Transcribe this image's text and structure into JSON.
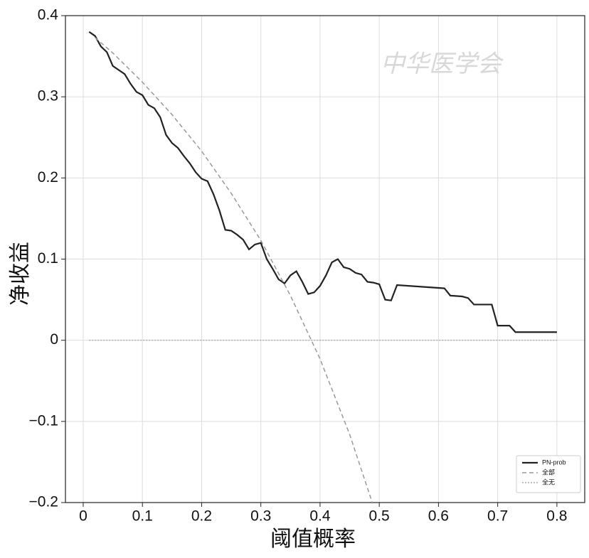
{
  "chart_data": {
    "type": "line",
    "xlabel": "阈值概率",
    "ylabel": "净收益",
    "watermark": "中华医学会",
    "xlim": [
      -0.03,
      0.847
    ],
    "ylim": [
      -0.2,
      0.4
    ],
    "xticks": [
      0,
      0.1,
      0.2,
      0.3,
      0.4,
      0.5,
      0.6,
      0.7,
      0.8
    ],
    "yticks": [
      {
        "value": -0.2,
        "label": "−0.2"
      },
      {
        "value": -0.1,
        "label": "−0.1"
      },
      0,
      0.1,
      0.2,
      0.3,
      0.4
    ],
    "grid": true,
    "legend": "lower right",
    "series": [
      {
        "name": "PN-prob",
        "color": "#222222",
        "style": "solid",
        "x": [
          0.01,
          0.02,
          0.03,
          0.04,
          0.05,
          0.06,
          0.07,
          0.08,
          0.09,
          0.1,
          0.11,
          0.12,
          0.13,
          0.14,
          0.15,
          0.16,
          0.17,
          0.18,
          0.19,
          0.2,
          0.21,
          0.22,
          0.23,
          0.24,
          0.25,
          0.26,
          0.27,
          0.28,
          0.29,
          0.3,
          0.31,
          0.32,
          0.33,
          0.34,
          0.35,
          0.36,
          0.37,
          0.38,
          0.39,
          0.4,
          0.41,
          0.42,
          0.43,
          0.44,
          0.45,
          0.46,
          0.47,
          0.48,
          0.49,
          0.5,
          0.51,
          0.52,
          0.53,
          0.61,
          0.62,
          0.64,
          0.65,
          0.66,
          0.69,
          0.7,
          0.72,
          0.73,
          0.8
        ],
        "values": [
          0.38,
          0.375,
          0.362,
          0.355,
          0.338,
          0.333,
          0.328,
          0.316,
          0.306,
          0.302,
          0.29,
          0.286,
          0.275,
          0.253,
          0.243,
          0.237,
          0.227,
          0.218,
          0.207,
          0.199,
          0.196,
          0.18,
          0.16,
          0.136,
          0.135,
          0.13,
          0.124,
          0.112,
          0.118,
          0.12,
          0.1,
          0.088,
          0.075,
          0.07,
          0.08,
          0.085,
          0.072,
          0.057,
          0.059,
          0.067,
          0.08,
          0.096,
          0.1,
          0.09,
          0.088,
          0.083,
          0.081,
          0.072,
          0.071,
          0.069,
          0.05,
          0.049,
          0.068,
          0.064,
          0.055,
          0.054,
          0.052,
          0.044,
          0.044,
          0.018,
          0.018,
          0.01,
          0.01
        ]
      },
      {
        "name": "全部",
        "color": "#999999",
        "style": "dashed",
        "x": [
          0.02,
          0.05,
          0.1,
          0.15,
          0.2,
          0.25,
          0.3,
          0.35,
          0.4,
          0.45,
          0.49
        ],
        "values": [
          0.373,
          0.354,
          0.318,
          0.278,
          0.233,
          0.181,
          0.123,
          0.055,
          -0.023,
          -0.116,
          -0.204
        ]
      },
      {
        "name": "全无",
        "color": "#aaaaaa",
        "style": "dotted",
        "x": [
          0.01,
          0.8
        ],
        "values": [
          0,
          0
        ]
      }
    ]
  }
}
